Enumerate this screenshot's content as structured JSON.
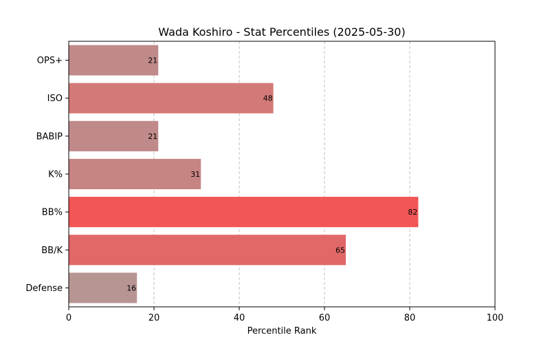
{
  "chart_data": {
    "type": "bar",
    "orientation": "horizontal",
    "title": "Wada Koshiro - Stat Percentiles (2025-05-30)",
    "xlabel": "Percentile Rank",
    "ylabel": "",
    "xlim": [
      0,
      100
    ],
    "xticks": [
      0,
      20,
      40,
      60,
      80,
      100
    ],
    "grid": "x dashed",
    "categories": [
      "OPS+",
      "ISO",
      "BABIP",
      "K%",
      "BB%",
      "BB/K",
      "Defense"
    ],
    "values": [
      21,
      48,
      21,
      31,
      82,
      65,
      16
    ],
    "colors": [
      "#c08a8a",
      "#d37a78",
      "#c08a8a",
      "#c68483",
      "#f25656",
      "#e06868",
      "#b69593"
    ]
  }
}
